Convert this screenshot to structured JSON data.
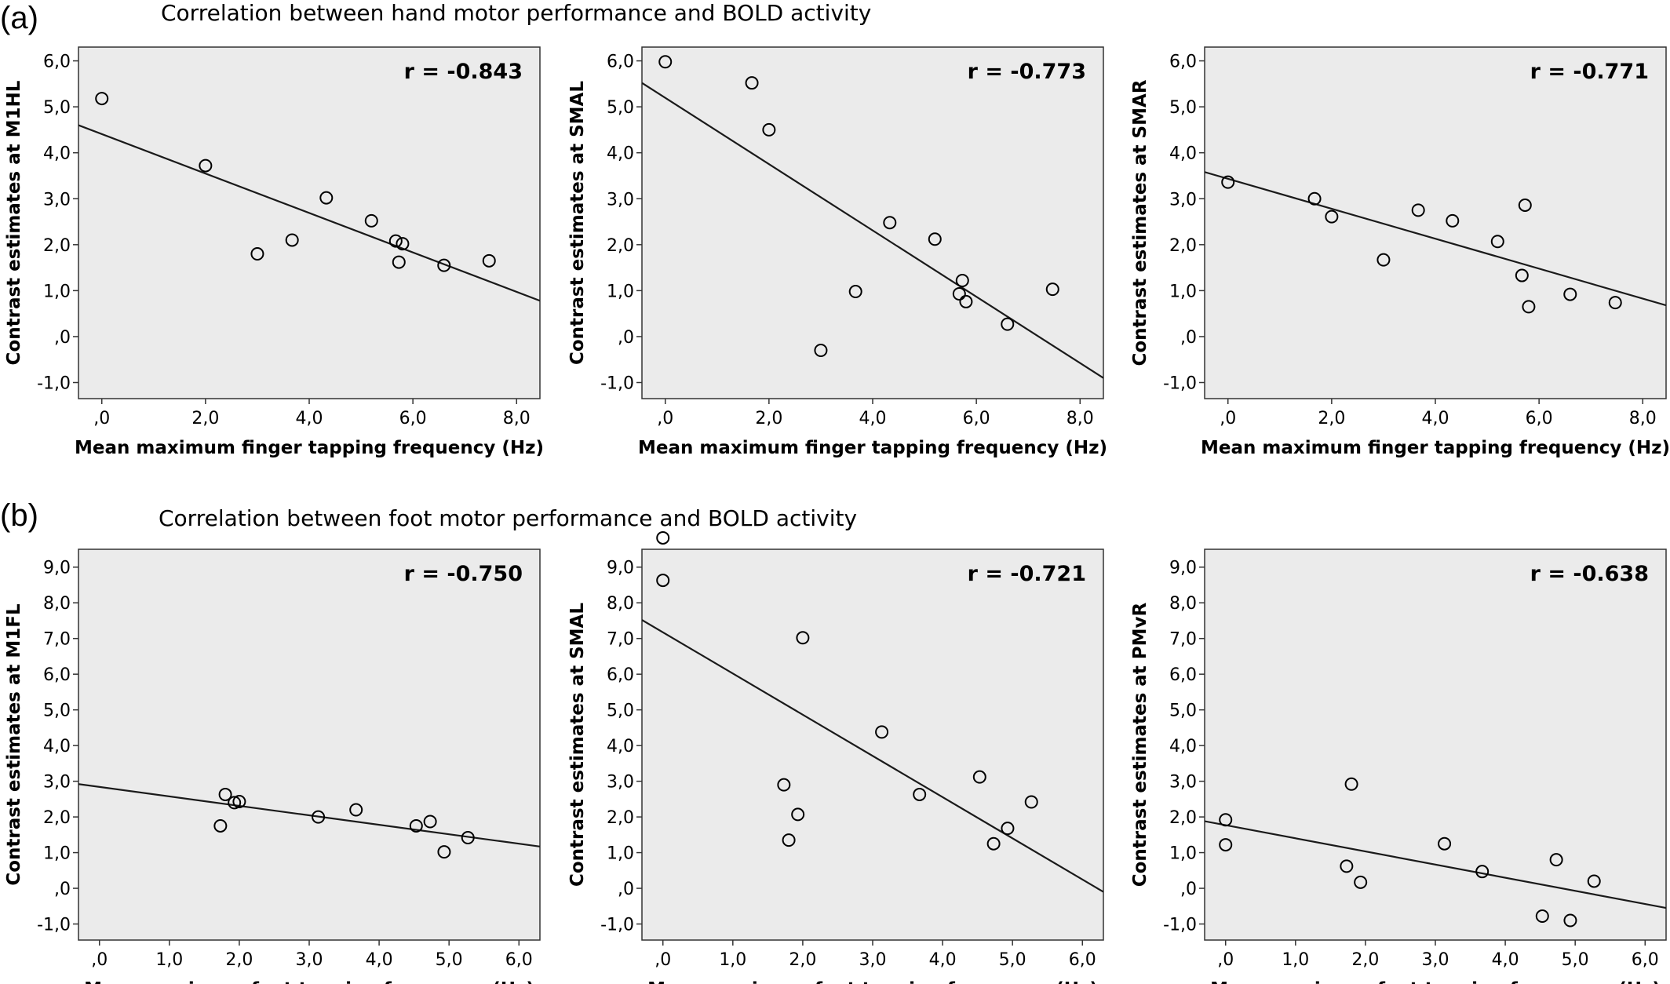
{
  "figure": {
    "row_a": {
      "letter": "(a)",
      "title": "Correlation between hand motor performance and BOLD activity"
    },
    "row_b": {
      "letter": "(b)",
      "title": "Correlation between foot motor performance and BOLD activity"
    }
  },
  "chart_data": [
    {
      "type": "scatter",
      "row": "a",
      "xlabel": "Mean maximum finger tapping frequency (Hz)",
      "ylabel": "Contrast estimates at M1HL",
      "annotation": "r = -0.843",
      "xlim": [
        -0.45,
        8.45
      ],
      "ylim": [
        -1.35,
        6.3
      ],
      "xticks": [
        0,
        2,
        4,
        6,
        8
      ],
      "xtick_labels": [
        ",0",
        "2,0",
        "4,0",
        "6,0",
        "8,0"
      ],
      "yticks": [
        -1,
        0,
        1,
        2,
        3,
        4,
        5,
        6
      ],
      "ytick_labels": [
        "-1,0",
        ",0",
        "1,0",
        "2,0",
        "3,0",
        "4,0",
        "5,0",
        "6,0"
      ],
      "points": [
        {
          "x": 0.0,
          "y": 5.18
        },
        {
          "x": 2.0,
          "y": 3.72
        },
        {
          "x": 3.0,
          "y": 1.8
        },
        {
          "x": 3.67,
          "y": 2.1
        },
        {
          "x": 4.33,
          "y": 3.02
        },
        {
          "x": 5.2,
          "y": 2.52
        },
        {
          "x": 5.67,
          "y": 2.08
        },
        {
          "x": 5.73,
          "y": 1.62
        },
        {
          "x": 5.8,
          "y": 2.02
        },
        {
          "x": 6.6,
          "y": 1.55
        },
        {
          "x": 7.47,
          "y": 1.65
        }
      ],
      "fit": {
        "x": [
          -0.45,
          8.45
        ],
        "y": [
          4.6,
          0.78
        ]
      }
    },
    {
      "type": "scatter",
      "row": "a",
      "xlabel": "Mean maximum finger tapping frequency (Hz)",
      "ylabel": "Contrast estimates at SMAL",
      "annotation": "r = -0.773",
      "xlim": [
        -0.45,
        8.45
      ],
      "ylim": [
        -1.35,
        6.3
      ],
      "xticks": [
        0,
        2,
        4,
        6,
        8
      ],
      "xtick_labels": [
        ",0",
        "2,0",
        "4,0",
        "6,0",
        "8,0"
      ],
      "yticks": [
        -1,
        0,
        1,
        2,
        3,
        4,
        5,
        6
      ],
      "ytick_labels": [
        "-1,0",
        ",0",
        "1,0",
        "2,0",
        "3,0",
        "4,0",
        "5,0",
        "6,0"
      ],
      "points": [
        {
          "x": 0.0,
          "y": 5.98
        },
        {
          "x": 1.67,
          "y": 5.52
        },
        {
          "x": 2.0,
          "y": 4.5
        },
        {
          "x": 3.0,
          "y": -0.3
        },
        {
          "x": 3.67,
          "y": 0.98
        },
        {
          "x": 4.33,
          "y": 2.48
        },
        {
          "x": 5.2,
          "y": 2.12
        },
        {
          "x": 5.67,
          "y": 0.93
        },
        {
          "x": 5.73,
          "y": 1.22
        },
        {
          "x": 5.8,
          "y": 0.76
        },
        {
          "x": 6.6,
          "y": 0.27
        },
        {
          "x": 7.47,
          "y": 1.03
        }
      ],
      "fit": {
        "x": [
          -0.45,
          8.45
        ],
        "y": [
          5.52,
          -0.9
        ]
      }
    },
    {
      "type": "scatter",
      "row": "a",
      "xlabel": "Mean maximum finger tapping frequency (Hz)",
      "ylabel": "Contrast estimates at SMAR",
      "annotation": "r = -0.771",
      "xlim": [
        -0.45,
        8.45
      ],
      "ylim": [
        -1.35,
        6.3
      ],
      "xticks": [
        0,
        2,
        4,
        6,
        8
      ],
      "xtick_labels": [
        ",0",
        "2,0",
        "4,0",
        "6,0",
        "8,0"
      ],
      "yticks": [
        -1,
        0,
        1,
        2,
        3,
        4,
        5,
        6
      ],
      "ytick_labels": [
        "-1,0",
        ",0",
        "1,0",
        "2,0",
        "3,0",
        "4,0",
        "5,0",
        "6,0"
      ],
      "points": [
        {
          "x": 0.0,
          "y": 3.36
        },
        {
          "x": 1.67,
          "y": 3.0
        },
        {
          "x": 2.0,
          "y": 2.61
        },
        {
          "x": 3.0,
          "y": 1.67
        },
        {
          "x": 3.67,
          "y": 2.75
        },
        {
          "x": 4.33,
          "y": 2.52
        },
        {
          "x": 5.2,
          "y": 2.07
        },
        {
          "x": 5.67,
          "y": 1.33
        },
        {
          "x": 5.73,
          "y": 2.86
        },
        {
          "x": 5.8,
          "y": 0.65
        },
        {
          "x": 6.6,
          "y": 0.92
        },
        {
          "x": 7.47,
          "y": 0.74
        }
      ],
      "fit": {
        "x": [
          -0.45,
          8.45
        ],
        "y": [
          3.58,
          0.68
        ]
      }
    },
    {
      "type": "scatter",
      "row": "b",
      "xlabel": "Mean maximum foot tapping frequency (Hz)",
      "ylabel": "Contrast estimates at M1FL",
      "annotation": "r = -0.750",
      "xlim": [
        -0.3,
        6.3
      ],
      "ylim": [
        -1.45,
        9.5
      ],
      "xticks": [
        0,
        1,
        2,
        3,
        4,
        5,
        6
      ],
      "xtick_labels": [
        ",0",
        "1,0",
        "2,0",
        "3,0",
        "4,0",
        "5,0",
        "6,0"
      ],
      "yticks": [
        -1,
        0,
        1,
        2,
        3,
        4,
        5,
        6,
        7,
        8,
        9
      ],
      "ytick_labels": [
        "-1,0",
        ",0",
        "1,0",
        "2,0",
        "3,0",
        "4,0",
        "5,0",
        "6,0",
        "7,0",
        "8,0",
        "9,0"
      ],
      "points": [
        {
          "x": 1.73,
          "y": 1.75
        },
        {
          "x": 1.8,
          "y": 2.63
        },
        {
          "x": 1.93,
          "y": 2.4
        },
        {
          "x": 2.0,
          "y": 2.43
        },
        {
          "x": 3.13,
          "y": 2.0
        },
        {
          "x": 3.67,
          "y": 2.2
        },
        {
          "x": 4.53,
          "y": 1.75
        },
        {
          "x": 4.73,
          "y": 1.87
        },
        {
          "x": 4.93,
          "y": 1.02
        },
        {
          "x": 5.27,
          "y": 1.42
        }
      ],
      "fit": {
        "x": [
          -0.3,
          6.3
        ],
        "y": [
          2.92,
          1.17
        ]
      }
    },
    {
      "type": "scatter",
      "row": "b",
      "xlabel": "Mean maximum foot tapping frequency (Hz)",
      "ylabel": "Contrast estimates at SMAL",
      "annotation": "r = -0.721",
      "xlim": [
        -0.3,
        6.3
      ],
      "ylim": [
        -1.45,
        9.5
      ],
      "xticks": [
        0,
        1,
        2,
        3,
        4,
        5,
        6
      ],
      "xtick_labels": [
        ",0",
        "1,0",
        "2,0",
        "3,0",
        "4,0",
        "5,0",
        "6,0"
      ],
      "yticks": [
        -1,
        0,
        1,
        2,
        3,
        4,
        5,
        6,
        7,
        8,
        9
      ],
      "ytick_labels": [
        "-1,0",
        ",0",
        "1,0",
        "2,0",
        "3,0",
        "4,0",
        "5,0",
        "6,0",
        "7,0",
        "8,0",
        "9,0"
      ],
      "points": [
        {
          "x": 0.0,
          "y": 9.82
        },
        {
          "x": 0.0,
          "y": 8.63
        },
        {
          "x": 1.73,
          "y": 2.9
        },
        {
          "x": 1.8,
          "y": 1.35
        },
        {
          "x": 1.93,
          "y": 2.07
        },
        {
          "x": 2.0,
          "y": 7.02
        },
        {
          "x": 3.13,
          "y": 4.38
        },
        {
          "x": 3.67,
          "y": 2.63
        },
        {
          "x": 4.53,
          "y": 3.12
        },
        {
          "x": 4.73,
          "y": 1.25
        },
        {
          "x": 4.93,
          "y": 1.68
        },
        {
          "x": 5.27,
          "y": 2.42
        }
      ],
      "fit": {
        "x": [
          -0.3,
          6.3
        ],
        "y": [
          7.52,
          -0.1
        ]
      }
    },
    {
      "type": "scatter",
      "row": "b",
      "xlabel": "Mean maximum foot tapping frequency (Hz)",
      "ylabel": "Contrast estimates at PMvR",
      "annotation": "r = -0.638",
      "xlim": [
        -0.3,
        6.3
      ],
      "ylim": [
        -1.45,
        9.5
      ],
      "xticks": [
        0,
        1,
        2,
        3,
        4,
        5,
        6
      ],
      "xtick_labels": [
        ",0",
        "1,0",
        "2,0",
        "3,0",
        "4,0",
        "5,0",
        "6,0"
      ],
      "yticks": [
        -1,
        0,
        1,
        2,
        3,
        4,
        5,
        6,
        7,
        8,
        9
      ],
      "ytick_labels": [
        "-1,0",
        ",0",
        "1,0",
        "2,0",
        "3,0",
        "4,0",
        "5,0",
        "6,0",
        "7,0",
        "8,0",
        "9,0"
      ],
      "points": [
        {
          "x": 0.0,
          "y": 1.92
        },
        {
          "x": 0.0,
          "y": 1.22
        },
        {
          "x": 1.73,
          "y": 0.62
        },
        {
          "x": 1.8,
          "y": 2.92
        },
        {
          "x": 1.93,
          "y": 0.17
        },
        {
          "x": 3.13,
          "y": 1.25
        },
        {
          "x": 3.67,
          "y": 0.47
        },
        {
          "x": 4.53,
          "y": -0.78
        },
        {
          "x": 4.73,
          "y": 0.8
        },
        {
          "x": 4.93,
          "y": -0.9
        },
        {
          "x": 5.27,
          "y": 0.2
        }
      ],
      "fit": {
        "x": [
          -0.3,
          6.3
        ],
        "y": [
          1.88,
          -0.55
        ]
      }
    }
  ]
}
